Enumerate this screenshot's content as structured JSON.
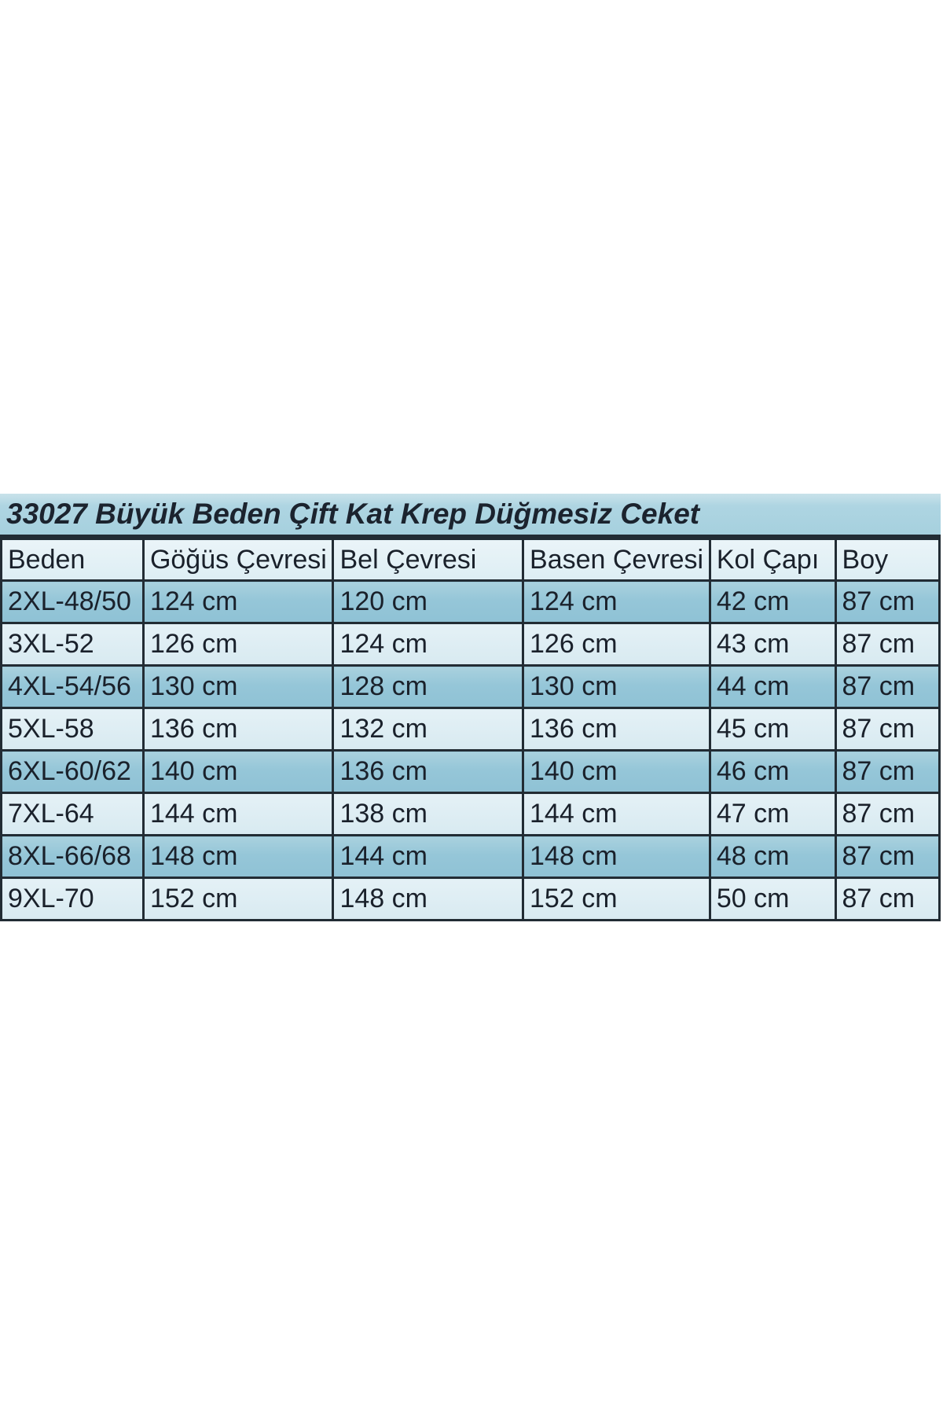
{
  "chart_data": {
    "type": "table",
    "title": "33027 Büyük Beden Çift Kat Krep Düğmesiz Ceket",
    "columns": [
      "Beden",
      "Göğüs Çevresi",
      "Bel Çevresi",
      "Basen Çevresi",
      "Kol Çapı",
      "Boy"
    ],
    "rows": [
      [
        "2XL-48/50",
        "124 cm",
        "120 cm",
        "124 cm",
        "42 cm",
        "87 cm"
      ],
      [
        "3XL-52",
        "126 cm",
        "124 cm",
        "126 cm",
        "43 cm",
        "87 cm"
      ],
      [
        "4XL-54/56",
        "130 cm",
        "128 cm",
        "130 cm",
        "44 cm",
        "87 cm"
      ],
      [
        "5XL-58",
        "136 cm",
        "132 cm",
        "136 cm",
        "45 cm",
        "87 cm"
      ],
      [
        "6XL-60/62",
        "140 cm",
        "136 cm",
        "140 cm",
        "46 cm",
        "87 cm"
      ],
      [
        "7XL-64",
        "144 cm",
        "138 cm",
        "144 cm",
        "47 cm",
        "87 cm"
      ],
      [
        "8XL-66/68",
        "148 cm",
        "144 cm",
        "148 cm",
        "48 cm",
        "87 cm"
      ],
      [
        "9XL-70",
        "152 cm",
        "148 cm",
        "152 cm",
        "50 cm",
        "87 cm"
      ]
    ],
    "units": "cm",
    "layout_hints": {
      "striping": "rows alternate dark/light blue starting with dark",
      "title_style": "bold italic, merged cell across all columns"
    },
    "colors": {
      "title_background": "#a9d2df",
      "header_background": "#e2f0f6",
      "row_dark_background": "#95c6d8",
      "row_light_background": "#dcecf3",
      "border": "#222c34",
      "text": "#1a212b",
      "page_background": "#ffffff"
    }
  }
}
